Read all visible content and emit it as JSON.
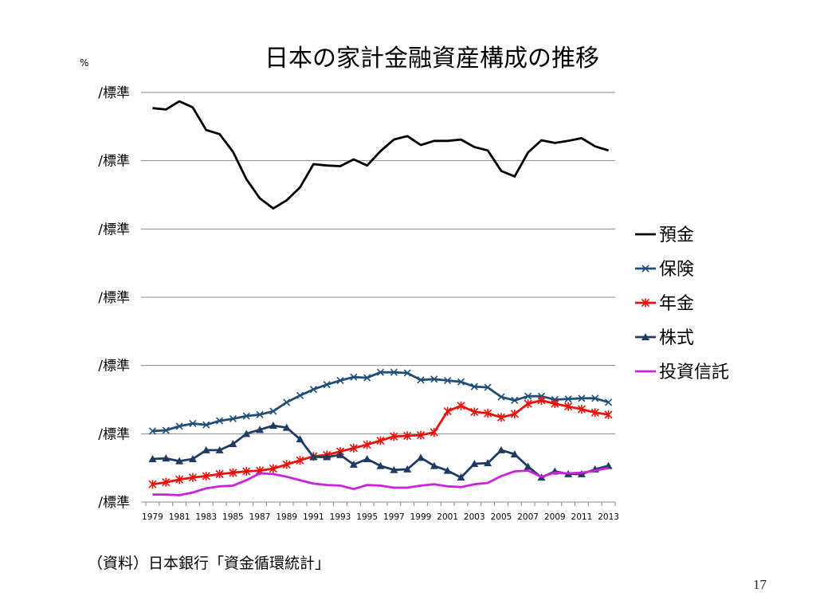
{
  "title": "日本の家計金融資産構成の推移",
  "unit_label": "%",
  "source": "（資料）日本銀行「資金循環統計」",
  "page_number": "17",
  "colors": {
    "deposit": "#000000",
    "insurance": "#1f4e79",
    "pension": "#e8120a",
    "stocks": "#1f3b64",
    "trusts": "#cc22dd",
    "grid": "#888888"
  },
  "chart_data": {
    "type": "line",
    "title": "日本の家計金融資産構成の推移",
    "ylabel": "%",
    "y_tick_labels": [
      "/標準",
      "/標準",
      "/標準",
      "/標準",
      "/標準",
      "/標準",
      "/標準"
    ],
    "ylim": [
      0,
      60
    ],
    "grid": true,
    "legend_position": "right",
    "x": [
      1979,
      1980,
      1981,
      1982,
      1983,
      1984,
      1985,
      1986,
      1987,
      1988,
      1989,
      1990,
      1991,
      1992,
      1993,
      1994,
      1995,
      1996,
      1997,
      1998,
      1999,
      2000,
      2001,
      2002,
      2003,
      2004,
      2005,
      2006,
      2007,
      2008,
      2009,
      2010,
      2011,
      2012,
      2013
    ],
    "x_tick_labels": [
      "1979",
      "1981",
      "1983",
      "1985",
      "1987",
      "1989",
      "1991",
      "1993",
      "1995",
      "1997",
      "1999",
      "2001",
      "2003",
      "2005",
      "2007",
      "2009",
      "2011",
      "2013"
    ],
    "series": [
      {
        "name": "預金",
        "key": "deposit",
        "marker": "none",
        "values": [
          57.7,
          57.5,
          58.7,
          57.8,
          54.5,
          53.9,
          51.3,
          47.3,
          44.5,
          43.0,
          44.2,
          46.1,
          49.5,
          49.3,
          49.2,
          50.2,
          49.3,
          51.4,
          53.1,
          53.6,
          52.3,
          52.9,
          52.9,
          53.1,
          52.0,
          51.5,
          48.5,
          47.7,
          51.2,
          53.0,
          52.6,
          52.9,
          53.3,
          52.1,
          51.5
        ]
      },
      {
        "name": "保険",
        "key": "insurance",
        "marker": "x",
        "values": [
          10.4,
          10.5,
          11.1,
          11.5,
          11.3,
          11.9,
          12.2,
          12.6,
          12.8,
          13.3,
          14.6,
          15.6,
          16.5,
          17.2,
          17.8,
          18.3,
          18.2,
          19.0,
          19.0,
          18.9,
          17.9,
          18.0,
          17.8,
          17.6,
          16.9,
          16.8,
          15.4,
          14.9,
          15.5,
          15.5,
          15.0,
          15.1,
          15.2,
          15.2,
          14.6
        ]
      },
      {
        "name": "年金",
        "key": "pension",
        "marker": "asterisk",
        "values": [
          2.6,
          2.9,
          3.3,
          3.6,
          3.8,
          4.1,
          4.3,
          4.5,
          4.6,
          4.9,
          5.5,
          6.1,
          6.7,
          6.9,
          7.4,
          7.9,
          8.4,
          9.0,
          9.6,
          9.7,
          9.8,
          10.2,
          13.3,
          14.1,
          13.2,
          13.0,
          12.4,
          12.9,
          14.4,
          14.9,
          14.4,
          14.0,
          13.6,
          13.1,
          12.8
        ]
      },
      {
        "name": "株式",
        "key": "stocks",
        "marker": "triangle",
        "values": [
          6.3,
          6.4,
          6.0,
          6.3,
          7.6,
          7.6,
          8.5,
          10.0,
          10.6,
          11.2,
          10.9,
          9.2,
          6.6,
          6.6,
          6.9,
          5.5,
          6.3,
          5.3,
          4.7,
          4.8,
          6.5,
          5.3,
          4.6,
          3.6,
          5.6,
          5.7,
          7.6,
          7.0,
          5.2,
          3.6,
          4.5,
          4.1,
          4.1,
          4.8,
          5.3
        ]
      },
      {
        "name": "投資信託",
        "key": "trusts",
        "marker": "none",
        "values": [
          1.1,
          1.1,
          1.0,
          1.4,
          2.0,
          2.3,
          2.4,
          3.2,
          4.2,
          4.1,
          3.7,
          3.2,
          2.7,
          2.5,
          2.4,
          1.9,
          2.5,
          2.4,
          2.1,
          2.1,
          2.4,
          2.6,
          2.3,
          2.2,
          2.6,
          2.8,
          3.8,
          4.5,
          4.6,
          3.7,
          4.3,
          4.2,
          4.3,
          4.6,
          5.0
        ]
      }
    ]
  }
}
